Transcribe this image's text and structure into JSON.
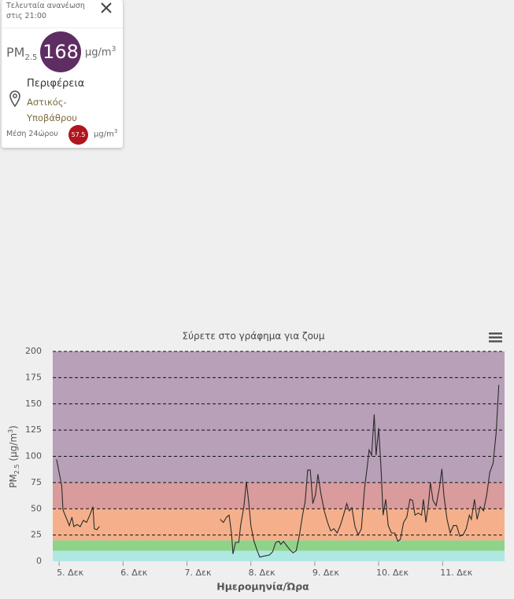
{
  "card": {
    "updated_line1": "Τελευταία ανανέωση",
    "updated_line2": "στις 21:00",
    "pollutant": "PM",
    "pollutant_sub": "2.5",
    "value": 168,
    "value_color": "#5e2d62",
    "unit": "μg/m",
    "unit_sup": "3",
    "region": "Περιφέρεια",
    "station_type": "Αστικός-Υποβάθρου",
    "avg_label": "Μέση 24ώρου",
    "avg_value": 57.5,
    "avg_color": "#b3141d",
    "avg_unit": "μg/m",
    "avg_unit_sup": "3"
  },
  "chart_data": {
    "type": "line",
    "title": "Σύρετε στο γράφημα για ζουμ",
    "xlabel": "Ημερομηνία/Ώρα",
    "ylabel": [
      "PM",
      "2.5",
      " (μg/m",
      "3",
      ")"
    ],
    "color": "#2b2b2b",
    "x": [
      4.96,
      5.04,
      5.06,
      5.12,
      5.16,
      5.2,
      5.23,
      5.28,
      5.33,
      5.38,
      5.43,
      5.48,
      5.53,
      5.55,
      5.59,
      5.63,
      6.5,
      7.52,
      7.57,
      7.62,
      7.66,
      7.7,
      7.72,
      7.76,
      7.81,
      7.84,
      7.89,
      7.93,
      7.97,
      8.0,
      8.05,
      8.1,
      8.14,
      8.21,
      8.29,
      8.34,
      8.39,
      8.44,
      8.47,
      8.51,
      8.56,
      8.61,
      8.66,
      8.71,
      8.76,
      8.81,
      8.85,
      8.89,
      8.93,
      8.97,
      9.01,
      9.05,
      9.1,
      9.15,
      9.2,
      9.25,
      9.3,
      9.35,
      9.4,
      9.45,
      9.5,
      9.54,
      9.58,
      9.63,
      9.68,
      9.73,
      9.78,
      9.82,
      9.85,
      9.89,
      9.93,
      9.96,
      10.0,
      10.04,
      10.07,
      10.11,
      10.15,
      10.2,
      10.25,
      10.3,
      10.34,
      10.39,
      10.44,
      10.49,
      10.53,
      10.57,
      10.62,
      10.67,
      10.7,
      10.74,
      10.78,
      10.81,
      10.85,
      10.9,
      10.95,
      10.99,
      11.02,
      11.07,
      11.12,
      11.17,
      11.22,
      11.27,
      11.32,
      11.37,
      11.42,
      11.45,
      11.5,
      11.54,
      11.59,
      11.64,
      11.69,
      11.74,
      11.79,
      11.84,
      11.88
    ],
    "values": [
      97,
      72,
      49,
      40,
      34,
      42,
      33,
      35,
      33,
      39,
      37,
      44,
      52,
      31,
      30,
      33,
      null,
      40,
      37,
      42,
      44,
      25,
      7,
      18,
      18,
      34,
      52,
      76,
      55,
      34,
      19,
      10,
      4,
      5,
      6,
      9,
      18,
      19,
      16,
      19,
      15,
      11,
      8,
      10,
      25,
      44,
      57,
      87,
      87,
      55,
      63,
      83,
      63,
      48,
      37,
      29,
      31,
      27,
      34,
      44,
      55,
      48,
      51,
      33,
      25,
      31,
      70,
      89,
      106,
      101,
      140,
      101,
      127,
      85,
      44,
      59,
      34,
      27,
      27,
      19,
      21,
      37,
      42,
      59,
      58,
      44,
      46,
      44,
      59,
      37,
      55,
      75,
      58,
      53,
      70,
      88,
      63,
      40,
      27,
      34,
      34,
      24,
      25,
      31,
      44,
      40,
      59,
      40,
      52,
      48,
      63,
      85,
      93,
      123,
      168
    ],
    "bands": [
      {
        "from": 0,
        "to": 10,
        "color": "#aee8e3"
      },
      {
        "from": 10,
        "to": 20,
        "color": "#8fd38a"
      },
      {
        "from": 20,
        "to": 50,
        "color": "#f5b08b"
      },
      {
        "from": 50,
        "to": 75,
        "color": "#d99b9b"
      },
      {
        "from": 75,
        "to": 200,
        "color": "#b8a0b8"
      }
    ],
    "xlim": [
      4.9,
      11.97
    ],
    "ylim": [
      0,
      200
    ],
    "xticks": [
      {
        "value": 5,
        "label": "5. Δεκ"
      },
      {
        "value": 6,
        "label": "6. Δεκ"
      },
      {
        "value": 7,
        "label": "7. Δεκ"
      },
      {
        "value": 8,
        "label": "8. Δεκ"
      },
      {
        "value": 9,
        "label": "9. Δεκ"
      },
      {
        "value": 10,
        "label": "10. Δεκ"
      },
      {
        "value": 11,
        "label": "11. Δεκ"
      }
    ],
    "yticks": [
      0,
      25,
      50,
      75,
      100,
      125,
      150,
      175,
      200
    ],
    "grid": true
  }
}
